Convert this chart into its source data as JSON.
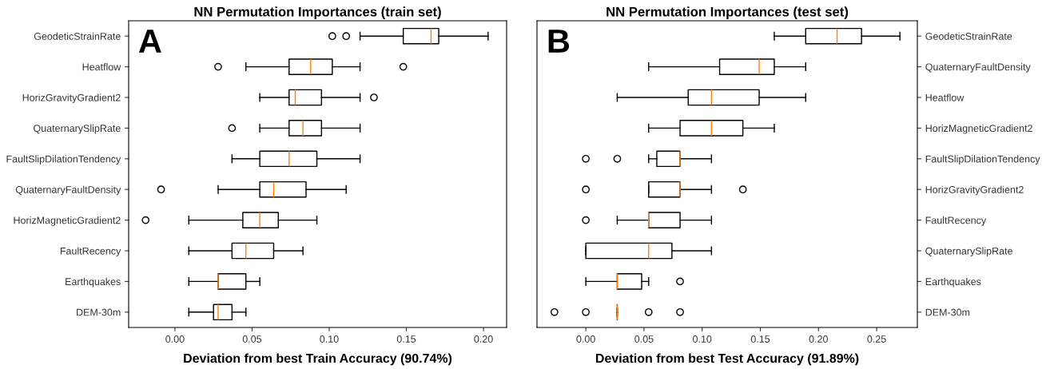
{
  "chart_data": [
    {
      "type": "box",
      "title": "NN Permutation Importances (train set)",
      "xlabel": "Deviation from best Train Accuracy (90.74%)",
      "orientation": "horizontal",
      "annotations": [
        "A"
      ],
      "xlim": [
        -0.03,
        0.215
      ],
      "xticks": [
        {
          "value": 0,
          "label": "0.00"
        },
        {
          "value": 0.05,
          "label": "0.05"
        },
        {
          "value": 0.1,
          "label": "0.10"
        },
        {
          "value": 0.15,
          "label": "0.15"
        },
        {
          "value": 0.2,
          "label": "0.20"
        }
      ],
      "grid": false,
      "marker": "circle",
      "color": "#000000",
      "categories": [
        "GeodeticStrainRate",
        "Heatflow",
        "HorizGravityGradient2",
        "QuaternarySlipRate",
        "FaultSlipDilationTendency",
        "QuaternaryFaultDensity",
        "HorizMagneticGradient2",
        "FaultRecency",
        "Earthquakes",
        "DEM-30m"
      ],
      "boxes": [
        {
          "low": 0.12,
          "q1": 0.148,
          "median": 0.166,
          "q3": 0.171,
          "high": 0.203,
          "outliers": [
            0.102,
            0.111
          ]
        },
        {
          "low": 0.046,
          "q1": 0.074,
          "median": 0.088,
          "q3": 0.102,
          "high": 0.12,
          "outliers": [
            0.028,
            0.148
          ]
        },
        {
          "low": 0.055,
          "q1": 0.074,
          "median": 0.078,
          "q3": 0.095,
          "high": 0.12,
          "outliers": [
            0.129
          ]
        },
        {
          "low": 0.055,
          "q1": 0.074,
          "median": 0.083,
          "q3": 0.095,
          "high": 0.12,
          "outliers": [
            0.037
          ]
        },
        {
          "low": 0.037,
          "q1": 0.055,
          "median": 0.074,
          "q3": 0.092,
          "high": 0.12
        },
        {
          "low": 0.028,
          "q1": 0.055,
          "median": 0.064,
          "q3": 0.085,
          "high": 0.111,
          "outliers": [
            -0.009
          ]
        },
        {
          "low": 0.009,
          "q1": 0.044,
          "median": 0.055,
          "q3": 0.067,
          "high": 0.092,
          "outliers": [
            -0.019
          ]
        },
        {
          "low": 0.009,
          "q1": 0.037,
          "median": 0.046,
          "q3": 0.064,
          "high": 0.083
        },
        {
          "low": 0.009,
          "q1": 0.028,
          "median": 0.028,
          "q3": 0.046,
          "high": 0.055
        },
        {
          "low": 0.009,
          "q1": 0.025,
          "median": 0.028,
          "q3": 0.037,
          "high": 0.046
        }
      ]
    },
    {
      "type": "box",
      "title": "NN Permutation Importances (test set)",
      "xlabel": "Deviation from best Test Accuracy (91.89%)",
      "orientation": "horizontal",
      "annotations": [
        "B"
      ],
      "xlim": [
        -0.042,
        0.285
      ],
      "xticks": [
        {
          "value": 0,
          "label": "0.00"
        },
        {
          "value": 0.05,
          "label": "0.05"
        },
        {
          "value": 0.1,
          "label": "0.10"
        },
        {
          "value": 0.15,
          "label": "0.15"
        },
        {
          "value": 0.2,
          "label": "0.20"
        },
        {
          "value": 0.25,
          "label": "0.25"
        }
      ],
      "grid": false,
      "marker": "circle",
      "color": "#000000",
      "categories": [
        "GeodeticStrainRate",
        "QuaternaryFaultDensity",
        "Heatflow",
        "HorizMagneticGradient2",
        "FaultSlipDilationTendency",
        "HorizGravityGradient2",
        "FaultRecency",
        "QuaternarySlipRate",
        "Earthquakes",
        "DEM-30m"
      ],
      "boxes": [
        {
          "low": 0.162,
          "q1": 0.189,
          "median": 0.216,
          "q3": 0.237,
          "high": 0.27
        },
        {
          "low": 0.054,
          "q1": 0.115,
          "median": 0.149,
          "q3": 0.162,
          "high": 0.189
        },
        {
          "low": 0.027,
          "q1": 0.088,
          "median": 0.108,
          "q3": 0.149,
          "high": 0.189
        },
        {
          "low": 0.054,
          "q1": 0.081,
          "median": 0.108,
          "q3": 0.135,
          "high": 0.162
        },
        {
          "low": 0.054,
          "q1": 0.061,
          "median": 0.081,
          "q3": 0.081,
          "high": 0.108,
          "outliers": [
            0,
            0.027
          ]
        },
        {
          "low": 0.054,
          "q1": 0.054,
          "median": 0.081,
          "q3": 0.081,
          "high": 0.108,
          "outliers": [
            0,
            0.135
          ]
        },
        {
          "low": 0.027,
          "q1": 0.054,
          "median": 0.054,
          "q3": 0.081,
          "high": 0.108,
          "outliers": [
            0
          ]
        },
        {
          "low": 0,
          "q1": 0,
          "median": 0.054,
          "q3": 0.074,
          "high": 0.108
        },
        {
          "low": 0,
          "q1": 0.027,
          "median": 0.027,
          "q3": 0.048,
          "high": 0.054,
          "outliers": [
            0.081
          ]
        },
        {
          "low": 0.027,
          "q1": 0.027,
          "median": 0.027,
          "q3": 0.027,
          "high": 0.027,
          "outliers": [
            -0.027,
            0,
            0.054,
            0.081
          ]
        }
      ]
    }
  ]
}
